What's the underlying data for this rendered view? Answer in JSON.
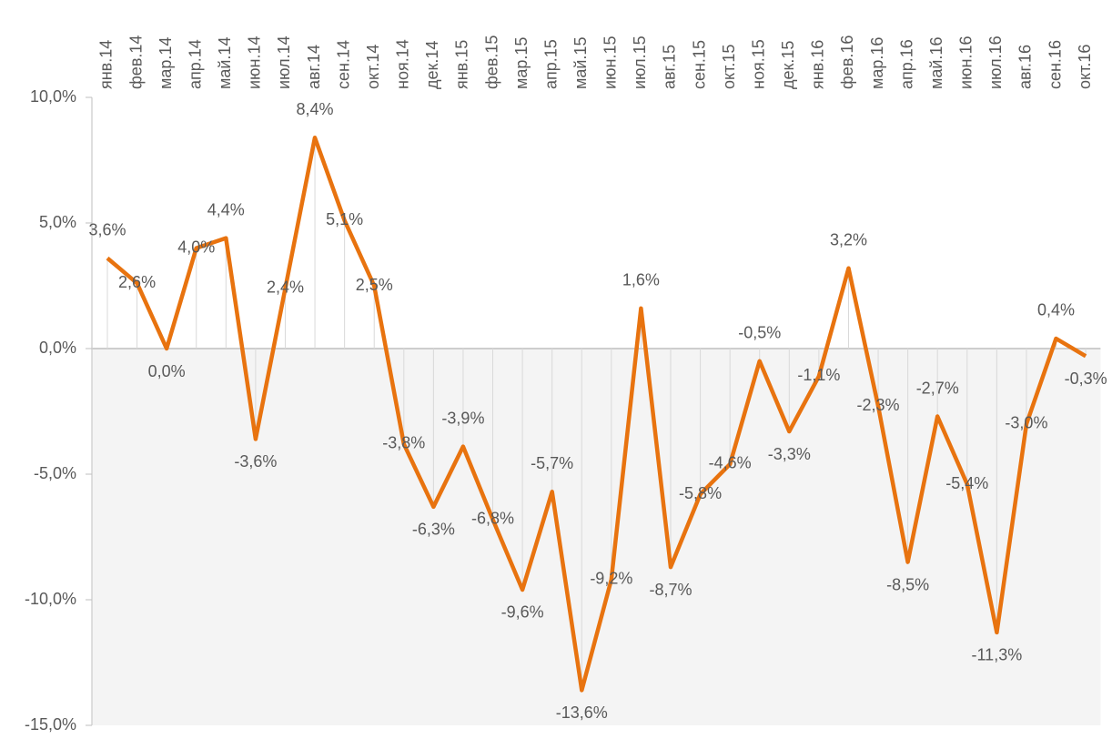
{
  "chart_data": {
    "type": "line",
    "categories": [
      "янв.14",
      "фев.14",
      "мар.14",
      "апр.14",
      "май.14",
      "июн.14",
      "июл.14",
      "авг.14",
      "сен.14",
      "окт.14",
      "ноя.14",
      "дек.14",
      "янв.15",
      "фев.15",
      "мар.15",
      "апр.15",
      "май.15",
      "июн.15",
      "июл.15",
      "авг.15",
      "сен.15",
      "окт.15",
      "ноя.15",
      "дек.15",
      "янв.16",
      "фев.16",
      "мар.16",
      "апр.16",
      "май.16",
      "июн.16",
      "июл.16",
      "авг.16",
      "сен.16",
      "окт.16"
    ],
    "series": [
      {
        "color": "#e8730f",
        "values": [
          3.6,
          2.6,
          0.0,
          4.0,
          4.4,
          -3.6,
          2.4,
          8.4,
          5.1,
          2.5,
          -3.8,
          -6.3,
          -3.9,
          -6.8,
          -9.6,
          -5.7,
          -13.6,
          -9.2,
          1.6,
          -8.7,
          -5.8,
          -4.6,
          -0.5,
          -3.3,
          -1.1,
          3.2,
          -2.3,
          -8.5,
          -2.7,
          -5.4,
          -11.3,
          -3.0,
          0.4,
          -0.3
        ],
        "value_labels": [
          "3,6%",
          "2,6%",
          "0,0%",
          "4,0%",
          "4,4%",
          "-3,6%",
          "2,4%",
          "8,4%",
          "5,1%",
          "2,5%",
          "-3,8%",
          "-6,3%",
          "-3,9%",
          "-6,8%",
          "-9,6%",
          "-5,7%",
          "-13,6%",
          "-9,2%",
          "1,6%",
          "-8,7%",
          "-5,8%",
          "-4,6%",
          "-0,5%",
          "-3,3%",
          "-1,1%",
          "3,2%",
          "-2,3%",
          "-8,5%",
          "-2,7%",
          "-5,4%",
          "-11,3%",
          "-3,0%",
          "0,4%",
          "-0,3%"
        ]
      }
    ],
    "ylim": [
      -15,
      10
    ],
    "yticks": [
      {
        "value": -15,
        "label": "-15,0%"
      },
      {
        "value": -10,
        "label": "-10,0%"
      },
      {
        "value": -5,
        "label": "-5,0%"
      },
      {
        "value": 0,
        "label": "0,0%"
      },
      {
        "value": 5,
        "label": "5,0%"
      },
      {
        "value": 10,
        "label": "10,0%"
      }
    ]
  }
}
